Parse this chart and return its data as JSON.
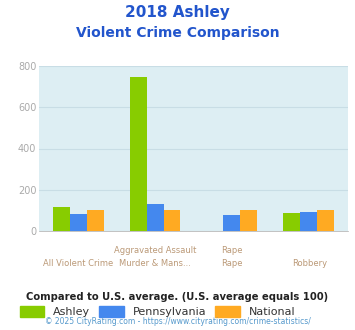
{
  "title_line1": "2018 Ashley",
  "title_line2": "Violent Crime Comparison",
  "cat_top": [
    "",
    "Aggravated Assault",
    "",
    ""
  ],
  "cat_bot": [
    "All Violent Crime",
    "Murder & Mans...",
    "Rape",
    "Robbery"
  ],
  "ashley": [
    115,
    745,
    0,
    88
  ],
  "pennsylvania": [
    83,
    130,
    80,
    92
  ],
  "national": [
    100,
    100,
    100,
    100
  ],
  "color_ashley": "#88cc00",
  "color_pa": "#4488ee",
  "color_national": "#ffaa22",
  "ylim": [
    0,
    800
  ],
  "yticks": [
    0,
    200,
    400,
    600,
    800
  ],
  "background_color": "#ddeef3",
  "footer_text": "Compared to U.S. average. (U.S. average equals 100)",
  "copyright_text": "© 2025 CityRating.com - https://www.cityrating.com/crime-statistics/",
  "title_color": "#2255cc",
  "footer_color": "#222222",
  "copyright_color": "#5599cc",
  "bar_width": 0.22,
  "legend_labels": [
    "Ashley",
    "Pennsylvania",
    "National"
  ],
  "ytick_color": "#aaaaaa",
  "xtick_color": "#bb9977",
  "grid_color": "#c8dde5"
}
